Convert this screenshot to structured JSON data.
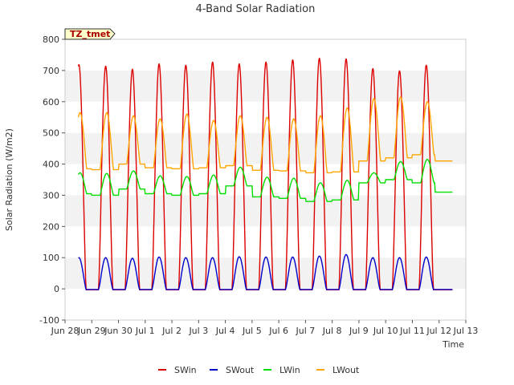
{
  "chart_data": {
    "type": "line",
    "title": "4-Band Solar Radiation",
    "xlabel": "Time",
    "ylabel": "Solar Radiation (W/m2)",
    "annotation": "TZ_tmet",
    "ylim": [
      -100,
      800
    ],
    "yticks": [
      -100,
      0,
      100,
      200,
      300,
      400,
      500,
      600,
      700,
      800
    ],
    "xlim": [
      0,
      15
    ],
    "xticks": [
      0,
      1,
      2,
      3,
      4,
      5,
      6,
      7,
      8,
      9,
      10,
      11,
      12,
      13,
      14,
      15
    ],
    "xtick_labels": [
      "Jun 28",
      "Jun 29",
      "Jun 30",
      "Jul 1",
      "Jul 2",
      "Jul 3",
      "Jul 4",
      "Jul 5",
      "Jul 6",
      "Jul 7",
      "Jul 8",
      "Jul 9",
      "Jul 10",
      "Jul 11",
      "Jul 12",
      "Jul 13"
    ],
    "grid": "horizontal bands",
    "legend_position": "bottom",
    "series": [
      {
        "name": "SWin",
        "color": "#dd0000",
        "daily_peak": [
          720,
          715,
          705,
          722,
          718,
          728,
          722,
          728,
          735,
          740,
          738,
          707,
          700,
          718
        ],
        "night_value": -3
      },
      {
        "name": "SWout",
        "color": "#0000cc",
        "daily_peak": [
          100,
          100,
          98,
          102,
          100,
          100,
          103,
          102,
          102,
          105,
          110,
          100,
          100,
          102
        ],
        "night_value": -2
      },
      {
        "name": "LWin",
        "color": "#00dd00",
        "daily_min": [
          305,
          300,
          320,
          305,
          300,
          305,
          330,
          295,
          290,
          280,
          285,
          340,
          350,
          340
        ],
        "daily_max": [
          372,
          370,
          378,
          362,
          360,
          365,
          390,
          358,
          355,
          340,
          348,
          372,
          408,
          415
        ],
        "end_value": 310
      },
      {
        "name": "LWout",
        "color": "#ffa500",
        "daily_min": [
          385,
          382,
          400,
          388,
          385,
          388,
          395,
          380,
          378,
          372,
          375,
          410,
          420,
          430
        ],
        "daily_max": [
          565,
          565,
          555,
          545,
          560,
          540,
          555,
          550,
          545,
          555,
          580,
          610,
          615,
          600
        ],
        "end_value": 410
      }
    ]
  }
}
